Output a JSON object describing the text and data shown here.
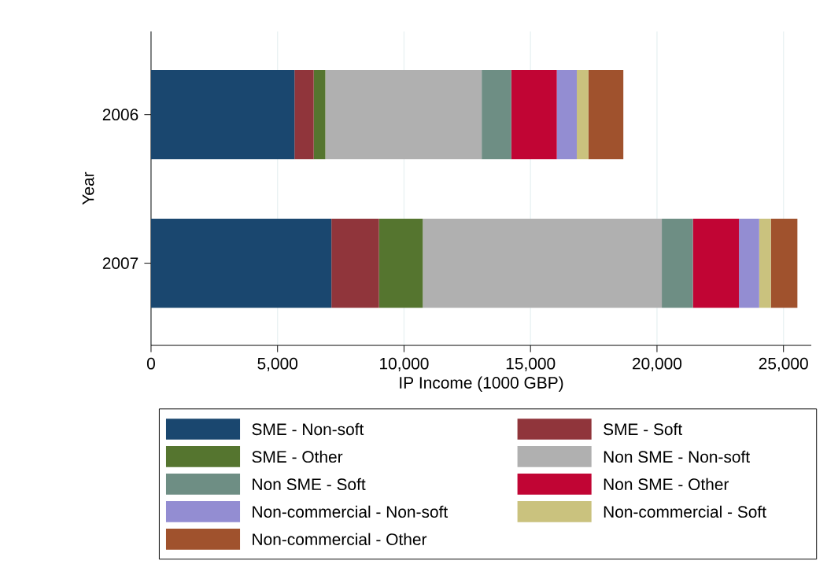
{
  "chart_data": {
    "type": "bar",
    "orientation": "horizontal",
    "stacked": true,
    "xlabel": "IP Income (1000 GBP)",
    "ylabel": "Year",
    "categories": [
      "2006",
      "2007"
    ],
    "series": [
      {
        "name": "SME - Non-soft",
        "color": "#1a476f",
        "values": [
          5670,
          7130
        ]
      },
      {
        "name": "SME - Soft",
        "color": "#90353b",
        "values": [
          760,
          1880
        ]
      },
      {
        "name": "SME - Other",
        "color": "#55752f",
        "values": [
          460,
          1730
        ]
      },
      {
        "name": "Non SME - Non-soft",
        "color": "#b0b0b0",
        "values": [
          6180,
          9450
        ]
      },
      {
        "name": "Non SME - Soft",
        "color": "#6e8e84",
        "values": [
          1170,
          1230
        ]
      },
      {
        "name": "Non SME - Other",
        "color": "#c10534",
        "values": [
          1800,
          1820
        ]
      },
      {
        "name": "Non-commercial - Non-soft",
        "color": "#938dd2",
        "values": [
          790,
          800
        ]
      },
      {
        "name": "Non-commercial - Soft",
        "color": "#cac27e",
        "values": [
          460,
          460
        ]
      },
      {
        "name": "Non-commercial - Other",
        "color": "#a0522d",
        "values": [
          1380,
          1050
        ]
      }
    ],
    "xlim": [
      0,
      26100
    ],
    "xticks": [
      0,
      {
        "value": 5000,
        "label": "5,000"
      },
      {
        "value": 10000,
        "label": "10,000"
      },
      {
        "value": 15000,
        "label": "15,000"
      },
      {
        "value": 20000,
        "label": "20,000"
      },
      {
        "value": 25000,
        "label": "25,000"
      }
    ],
    "grid": "x",
    "legend": "bottom"
  }
}
